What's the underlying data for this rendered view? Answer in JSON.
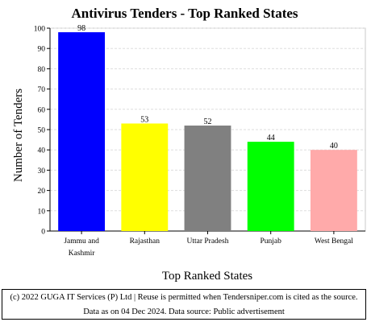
{
  "chart_data": {
    "type": "bar",
    "title": "Antivirus Tenders - Top Ranked States",
    "xlabel": "Top Ranked States",
    "ylabel": "Number of Tenders",
    "categories": [
      [
        "Jammu and",
        "Kashmir"
      ],
      [
        "Rajasthan"
      ],
      [
        "Uttar Pradesh"
      ],
      [
        "Punjab"
      ],
      [
        "West Bengal"
      ]
    ],
    "values": [
      98,
      53,
      52,
      44,
      40
    ],
    "data_labels": [
      "98",
      "53",
      "52",
      "44",
      "40"
    ],
    "colors": [
      "#0000ff",
      "#ffff00",
      "#808080",
      "#00ff00",
      "#ffaaaa"
    ],
    "ylim": [
      0,
      100
    ],
    "yticks": [
      0,
      10,
      20,
      30,
      40,
      50,
      60,
      70,
      80,
      90,
      100
    ],
    "grid": true,
    "legend": "none"
  },
  "footer": {
    "text": "(c) 2022 GUGA IT Services (P) Ltd | Reuse is permitted when Tendersniper.com is cited as the source. Data as on 04 Dec 2024. Data source: Public advertisement"
  }
}
